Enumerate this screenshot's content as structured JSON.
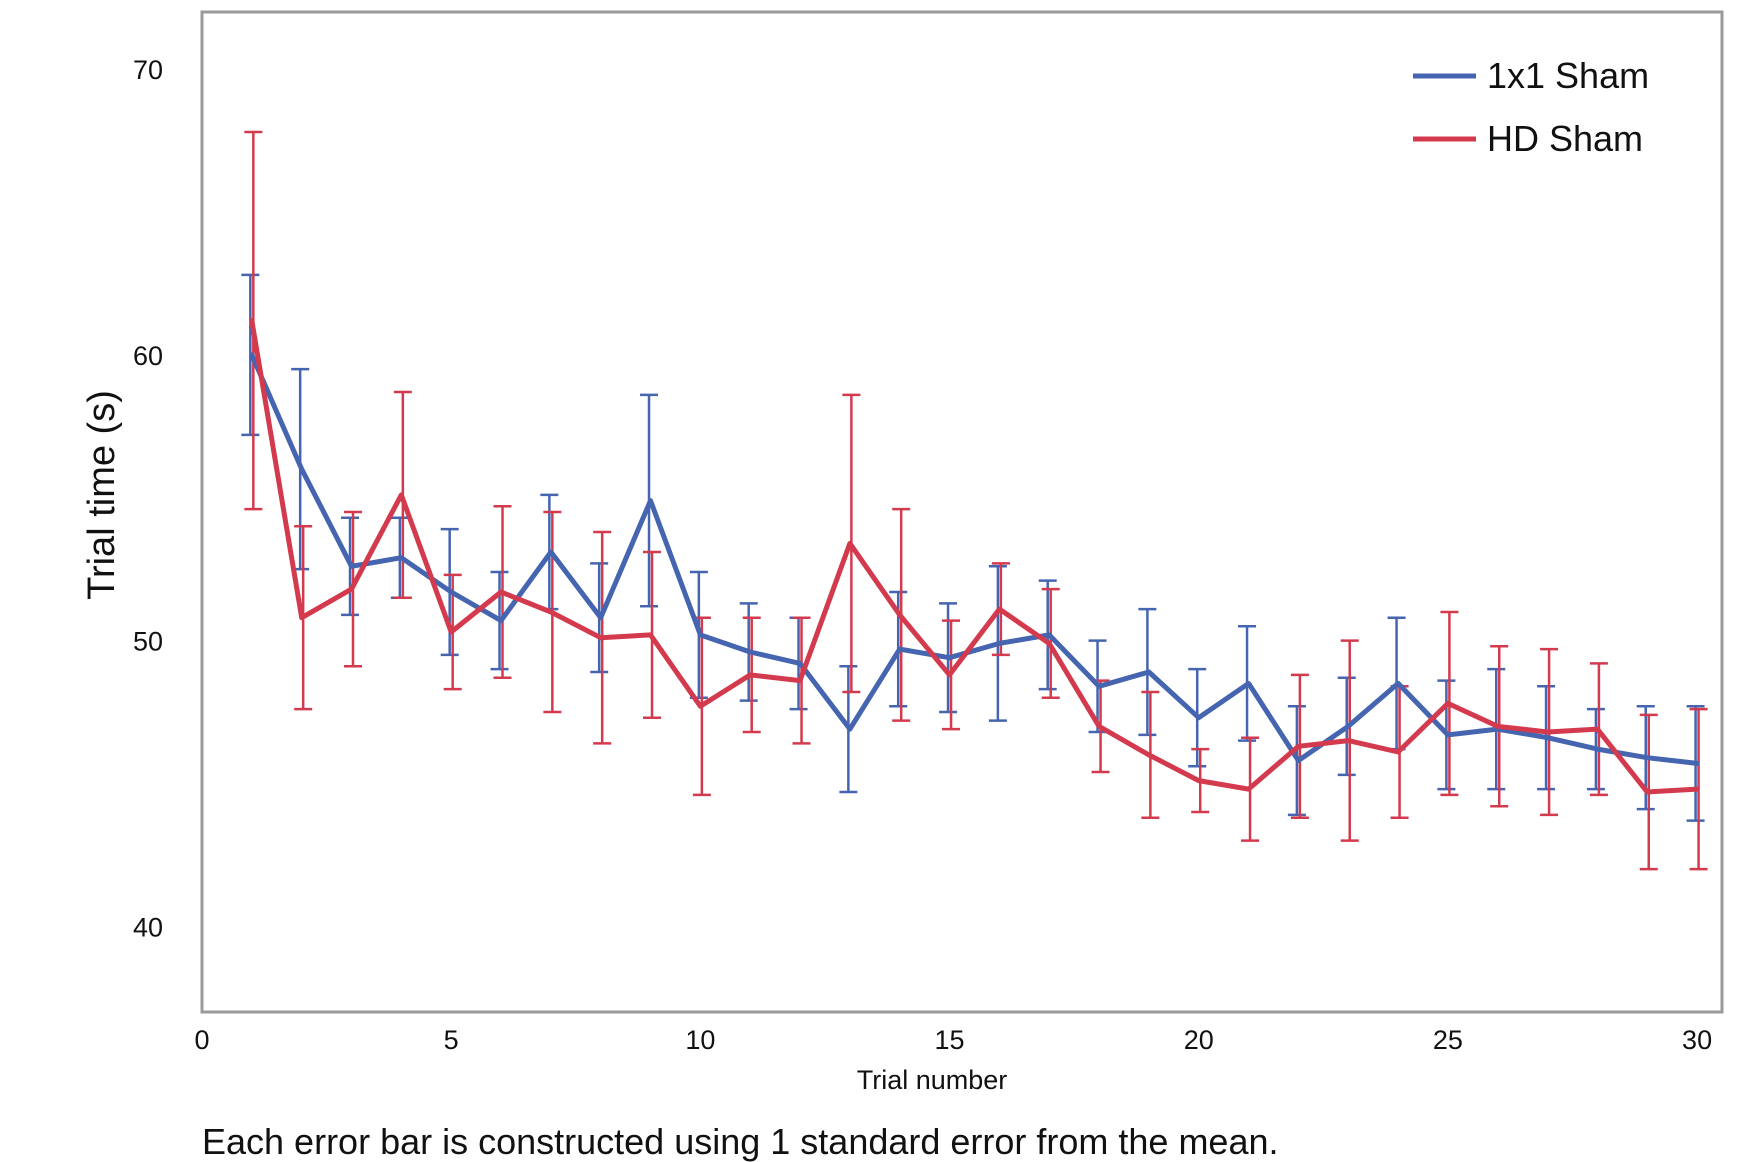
{
  "footnote": "Each error bar is constructed using 1 standard error from the mean.",
  "chart_data": {
    "type": "line",
    "title": "",
    "xlabel": "Trial number",
    "ylabel": "Trial time (s)",
    "xlim": [
      0,
      30.5
    ],
    "ylim": [
      37,
      72
    ],
    "xticks": [
      0,
      5,
      10,
      15,
      20,
      25,
      30
    ],
    "yticks": [
      40,
      50,
      60,
      70
    ],
    "grid": false,
    "legend_position": "top-right",
    "error_bars": "±1 standard error",
    "x": [
      1,
      2,
      3,
      4,
      5,
      6,
      7,
      8,
      9,
      10,
      11,
      12,
      13,
      14,
      15,
      16,
      17,
      18,
      19,
      20,
      21,
      22,
      23,
      24,
      25,
      26,
      27,
      28,
      29,
      30
    ],
    "series": [
      {
        "name": "1x1 Sham",
        "color": "#4565b0",
        "values": [
          60.0,
          56.0,
          52.6,
          52.9,
          51.7,
          50.7,
          53.1,
          50.8,
          54.9,
          50.2,
          49.6,
          49.2,
          46.9,
          49.7,
          49.4,
          49.9,
          50.2,
          48.4,
          48.9,
          47.3,
          48.5,
          45.8,
          47.0,
          48.5,
          46.7,
          46.9,
          46.6,
          46.2,
          45.9,
          45.7
        ],
        "se": [
          2.8,
          3.5,
          1.7,
          1.4,
          2.2,
          1.7,
          2.0,
          1.9,
          3.7,
          2.2,
          1.7,
          1.6,
          2.2,
          2.0,
          1.9,
          2.7,
          1.9,
          1.6,
          2.2,
          1.7,
          2.0,
          1.9,
          1.7,
          2.3,
          1.9,
          2.1,
          1.8,
          1.4,
          1.8,
          2.0
        ]
      },
      {
        "name": "HD Sham",
        "color": "#d43a4d",
        "values": [
          61.2,
          50.8,
          51.8,
          55.1,
          50.3,
          51.7,
          51.0,
          50.1,
          50.2,
          47.7,
          48.8,
          48.6,
          53.4,
          50.9,
          48.8,
          51.1,
          49.9,
          47.0,
          46.0,
          45.1,
          44.8,
          46.3,
          46.5,
          46.1,
          47.8,
          47.0,
          46.8,
          46.9,
          44.7,
          44.8
        ],
        "se": [
          6.6,
          3.2,
          2.7,
          3.6,
          2.0,
          3.0,
          3.5,
          3.7,
          2.9,
          3.1,
          2.0,
          2.2,
          5.2,
          3.7,
          1.9,
          1.6,
          1.9,
          1.6,
          2.2,
          1.1,
          1.8,
          2.5,
          3.5,
          2.3,
          3.2,
          2.8,
          2.9,
          2.3,
          2.7,
          2.8
        ]
      }
    ]
  }
}
